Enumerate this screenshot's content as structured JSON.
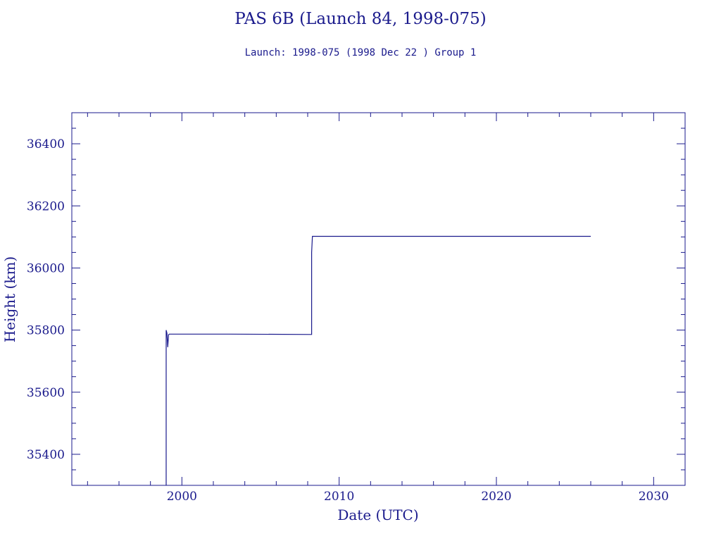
{
  "header": {
    "title": "PAS 6B (Launch 84, 1998-075)",
    "subtitle": "Launch: 1998-075  (1998 Dec 22 )  Group 1"
  },
  "colors": {
    "ink": "#1a1a8c",
    "background": "#ffffff"
  },
  "chart_data": {
    "type": "line",
    "xlabel": "Date (UTC)",
    "ylabel": "Height (km)",
    "xlim": [
      1993,
      2032
    ],
    "ylim": [
      35300,
      36500
    ],
    "xticks": [
      2000,
      2010,
      2020,
      2030
    ],
    "yticks": [
      35400,
      35600,
      35800,
      36000,
      36200,
      36400
    ],
    "grid": false,
    "series": [
      {
        "x": [
          1999.0,
          1999.0,
          1999.05,
          1999.1,
          1999.15,
          1999.2,
          2003.0,
          2008.25,
          2008.25,
          2008.3,
          2026.0
        ],
        "y": [
          35300,
          35800,
          35790,
          35745,
          35785,
          35787,
          35787,
          35786,
          36050,
          36102,
          36102
        ]
      }
    ]
  }
}
